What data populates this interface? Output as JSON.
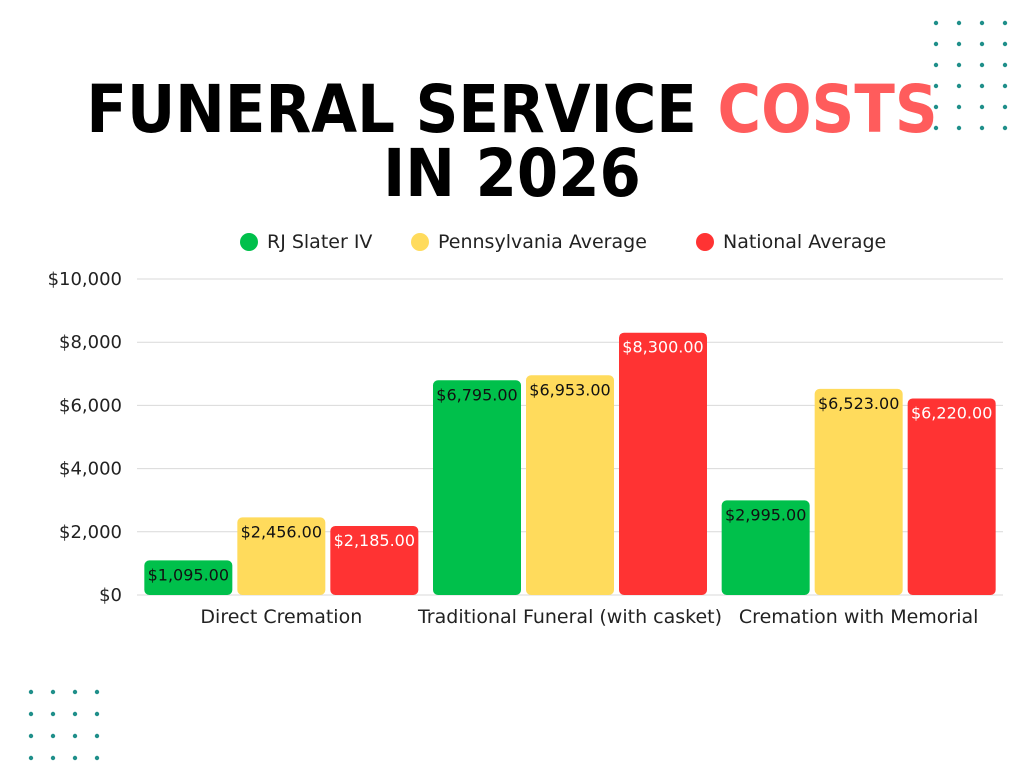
{
  "title": {
    "line1_part1": "FUNERAL SERVICE ",
    "line1_highlight": "COSTS",
    "line2": "IN 2026"
  },
  "colors": {
    "title": "#000000",
    "highlight": "#ff5c5c",
    "grid": "#d9d9d9",
    "dots": "#1f8f8a"
  },
  "chart_data": {
    "type": "bar",
    "categories": [
      "Direct Cremation",
      "Traditional Funeral (with casket)",
      "Cremation with Memorial"
    ],
    "series": [
      {
        "name": "RJ Slater IV",
        "color": "#00c04b",
        "label_color": "#111111",
        "values": [
          1095,
          6795,
          2995
        ],
        "labels": [
          "$1,095.00",
          "$6,795.00",
          "$2,995.00"
        ]
      },
      {
        "name": "Pennsylvania Average",
        "color": "#ffdb5c",
        "label_color": "#111111",
        "values": [
          2456,
          6953,
          6523
        ],
        "labels": [
          "$2,456.00",
          "$6,953.00",
          "$6,523.00"
        ]
      },
      {
        "name": "National Average",
        "color": "#ff3333",
        "label_color": "#ffffff",
        "values": [
          2185,
          8300,
          6220
        ],
        "labels": [
          "$2,185.00",
          "$8,300.00",
          "$6,220.00"
        ]
      }
    ],
    "ylim": [
      0,
      10000
    ],
    "yticks": [
      0,
      2000,
      4000,
      6000,
      8000,
      10000
    ],
    "ytick_labels": [
      "$0",
      "$2,000",
      "$4,000",
      "$6,000",
      "$8,000",
      "$10,000"
    ],
    "grid": true,
    "legend_position": "top"
  }
}
